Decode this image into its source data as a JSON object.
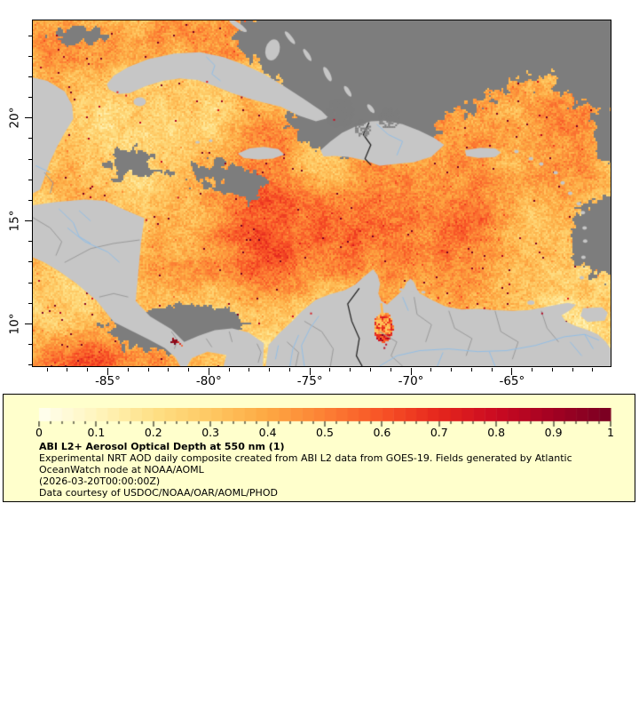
{
  "figure": {
    "map": {
      "x_axis": {
        "range_min": -88.71,
        "range_max": -60.12,
        "minor_step": 1,
        "major_ticks": [
          {
            "value": -85,
            "label": "-85°"
          },
          {
            "value": -80,
            "label": "-80°"
          },
          {
            "value": -75,
            "label": "-75°"
          },
          {
            "value": -70,
            "label": "-70°"
          },
          {
            "value": -65,
            "label": "-65°"
          }
        ]
      },
      "y_axis": {
        "range_min": 7.95,
        "range_max": 24.74,
        "minor_step": 1,
        "major_ticks": [
          {
            "value": 20,
            "label": "20°"
          },
          {
            "value": 15,
            "label": "15°"
          },
          {
            "value": 10,
            "label": "10°"
          }
        ]
      },
      "colors": {
        "land": "#c6c6c6",
        "missing_data": "#7d7d7d",
        "country_border": "#9a9a9a",
        "international_border": "#1c1c1c",
        "river": "#93bfe6",
        "frame": "#000000"
      }
    },
    "legend": {
      "background_color": "#ffffcc",
      "colorbar": {
        "min": 0,
        "max": 1,
        "segments": 50,
        "colormap": {
          "name": "YlOrRd",
          "start": "#fffff0",
          "end": "#780022"
        },
        "tick_labels": [
          "0",
          "0.1",
          "0.2",
          "0.3",
          "0.4",
          "0.5",
          "0.6",
          "0.7",
          "0.8",
          "0.9",
          "1"
        ]
      },
      "title": "ABI L2+ Aerosol Optical Depth at 550 nm (1)",
      "description_lines": [
        "Experimental NRT AOD daily composite created from ABI L2 data from GOES-19. Fields generated by Atlantic",
        "OceanWatch node at NOAA/AOML",
        "(2026-03-20T00:00:00Z)",
        "Data courtesy of USDOC/NOAA/OAR/AOML/PHOD"
      ]
    }
  },
  "chart_data": {
    "type": "heatmap",
    "title": "ABI L2+ Aerosol Optical Depth at 550 nm (1)",
    "variable": "Aerosol Optical Depth at 550 nm",
    "colorbar_range": [
      0,
      1
    ],
    "colorbar_tick_labels": [
      "0",
      "0.1",
      "0.2",
      "0.3",
      "0.4",
      "0.5",
      "0.6",
      "0.7",
      "0.8",
      "0.9",
      "1"
    ],
    "x_axis_tick_labels": [
      "-85°",
      "-80°",
      "-75°",
      "-70°",
      "-65°"
    ],
    "y_axis_tick_labels": [
      "20°",
      "15°",
      "10°"
    ],
    "x_axis_range_deg_lon": [
      -88.71,
      -60.12
    ],
    "y_axis_range_deg_lat": [
      7.95,
      24.74
    ],
    "timestamp": "(2026-03-20T00:00:00Z)",
    "notes": [
      "Experimental NRT AOD daily composite created from ABI L2 data from GOES-19. Fields generated by Atlantic OceanWatch node at NOAA/AOML",
      "Data courtesy of USDOC/NOAA/OAR/AOML/PHOD"
    ]
  }
}
